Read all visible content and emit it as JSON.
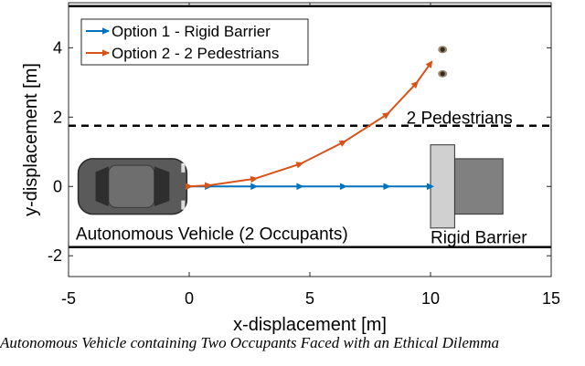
{
  "caption": "Autonomous Vehicle containing Two Occupants Faced with an Ethical Dilemma",
  "chart_data": {
    "type": "line",
    "xlabel": "x-displacement [m]",
    "ylabel": "y-displacement [m]",
    "xlim": [
      -5,
      15
    ],
    "ylim": [
      -2.6,
      5.3
    ],
    "xticks": [
      "-5",
      "0",
      "5",
      "10",
      "15"
    ],
    "yticks": [
      "-2",
      "0",
      "2",
      "4"
    ],
    "grid": false,
    "legend_position": "top-left",
    "series": [
      {
        "name": "Option 1 - Rigid Barrier",
        "color": "#0072BD",
        "x": [
          0,
          0.8,
          2.7,
          4.6,
          6.4,
          8.2,
          10.0
        ],
        "y": [
          0,
          0,
          0,
          0,
          0,
          0,
          0
        ]
      },
      {
        "name": "Option 2 - 2 Pedestrians",
        "color": "#D95319",
        "x": [
          0,
          0.8,
          2.7,
          4.6,
          6.4,
          8.2,
          9.4,
          10.0
        ],
        "y": [
          0,
          0.03,
          0.22,
          0.65,
          1.28,
          2.08,
          2.97,
          3.55
        ]
      }
    ],
    "reference_lines": [
      {
        "y": 5.2,
        "style": "solid"
      },
      {
        "y": 1.75,
        "style": "dashed"
      },
      {
        "y": -1.75,
        "style": "solid"
      }
    ],
    "annotations": [
      {
        "text": "2 Pedestrians",
        "x": 9.0,
        "y": 2.0
      },
      {
        "text": "Autonomous Vehicle (2 Occupants)",
        "x": -4.7,
        "y": -1.35
      },
      {
        "text": "Rigid Barrier",
        "x": 10.0,
        "y": -1.45
      }
    ],
    "objects": [
      {
        "name": "autonomous-vehicle",
        "x_range": [
          -4.6,
          -0.1
        ],
        "y_range": [
          -0.8,
          0.8
        ],
        "color": "#5a5a5a"
      },
      {
        "name": "barrier-front",
        "x_range": [
          10.0,
          11.0
        ],
        "y_range": [
          -1.2,
          1.2
        ],
        "color": "#d0d0d0"
      },
      {
        "name": "barrier-back",
        "x_range": [
          11.0,
          13.0
        ],
        "y_range": [
          -0.8,
          0.8
        ],
        "color": "#808080"
      },
      {
        "name": "pedestrian-1",
        "x": 10.5,
        "y": 3.95
      },
      {
        "name": "pedestrian-2",
        "x": 10.5,
        "y": 3.25
      }
    ],
    "colors": {
      "axis": "#262626",
      "barrier_front": "#d0d0d0",
      "barrier_back": "#808080",
      "vehicle": "#5a5a5a"
    }
  }
}
